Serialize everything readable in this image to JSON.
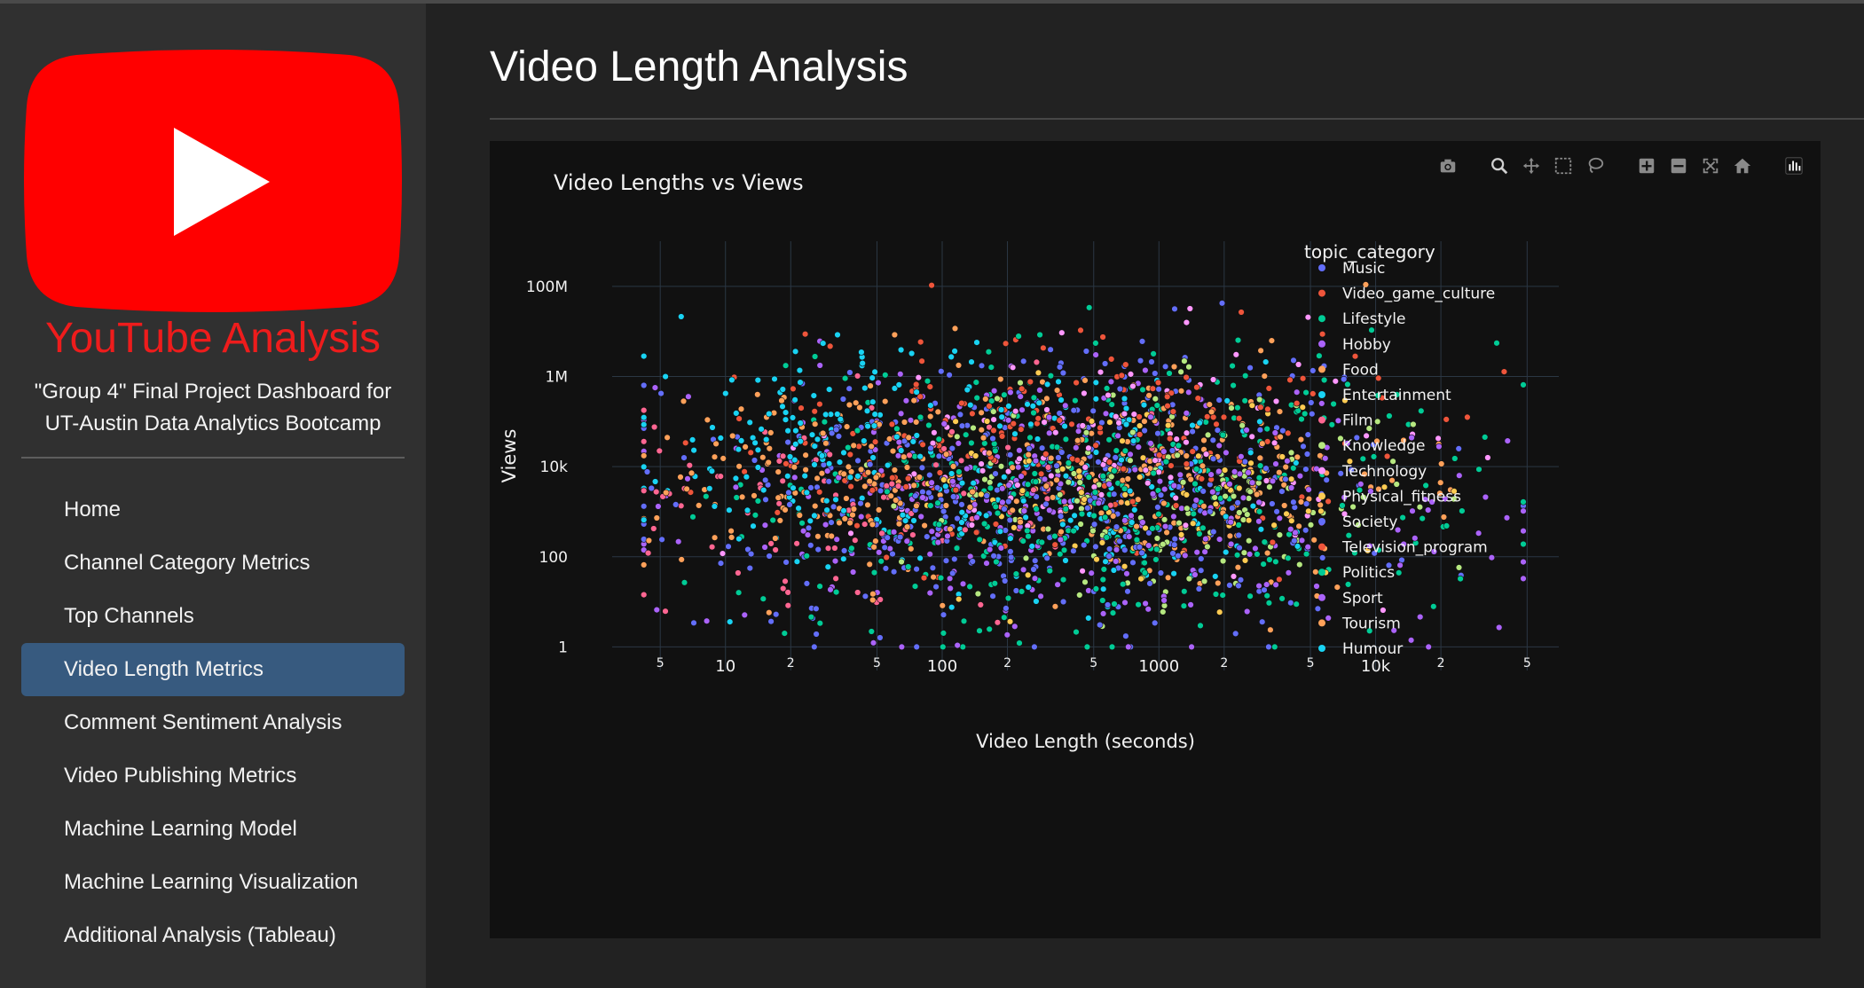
{
  "app": {
    "title": "YouTube Analysis",
    "subtitle_line1": "\"Group 4\" Final Project Dashboard for",
    "subtitle_line2": "UT-Austin Data Analytics Bootcamp",
    "brand_color": "#ff0000",
    "title_color": "#ee1c1c"
  },
  "nav": {
    "items": [
      {
        "label": "Home",
        "active": false
      },
      {
        "label": "Channel Category Metrics",
        "active": false
      },
      {
        "label": "Top Channels",
        "active": false
      },
      {
        "label": "Video Length Metrics",
        "active": true
      },
      {
        "label": "Comment Sentiment Analysis",
        "active": false
      },
      {
        "label": "Video Publishing Metrics",
        "active": false
      },
      {
        "label": "Machine Learning Model",
        "active": false
      },
      {
        "label": "Machine Learning Visualization",
        "active": false
      },
      {
        "label": "Additional Analysis (Tableau)",
        "active": false
      }
    ],
    "active_color": "#375a7f"
  },
  "page": {
    "title": "Video Length Analysis"
  },
  "modebar": {
    "icons": [
      "camera-icon",
      "zoom-icon",
      "pan-icon",
      "box-select-icon",
      "lasso-select-icon",
      "zoom-in-icon",
      "zoom-out-icon",
      "autoscale-icon",
      "reset-axes-icon",
      "plotly-logo-icon"
    ]
  },
  "chart_data": {
    "type": "scatter",
    "title": "Video Lengths vs Views",
    "xlabel": "Video Length (seconds)",
    "ylabel": "Views",
    "x_scale": "log",
    "y_scale": "log",
    "xlim": [
      3,
      70000
    ],
    "ylim": [
      0.3,
      1000000000.0
    ],
    "x_ticks": [
      {
        "value": 5,
        "label": "5",
        "minor": true
      },
      {
        "value": 10,
        "label": "10",
        "minor": false
      },
      {
        "value": 20,
        "label": "2",
        "minor": true
      },
      {
        "value": 50,
        "label": "5",
        "minor": true
      },
      {
        "value": 100,
        "label": "100",
        "minor": false
      },
      {
        "value": 200,
        "label": "2",
        "minor": true
      },
      {
        "value": 500,
        "label": "5",
        "minor": true
      },
      {
        "value": 1000,
        "label": "1000",
        "minor": false
      },
      {
        "value": 2000,
        "label": "2",
        "minor": true
      },
      {
        "value": 5000,
        "label": "5",
        "minor": true
      },
      {
        "value": 10000,
        "label": "10k",
        "minor": false
      },
      {
        "value": 20000,
        "label": "2",
        "minor": true
      },
      {
        "value": 50000,
        "label": "5",
        "minor": true
      }
    ],
    "y_ticks": [
      {
        "value": 1,
        "label": "1"
      },
      {
        "value": 100,
        "label": "100"
      },
      {
        "value": 10000,
        "label": "10k"
      },
      {
        "value": 1000000,
        "label": "1M"
      },
      {
        "value": 100000000,
        "label": "100M"
      }
    ],
    "grid": true,
    "legend_position": "right",
    "legend_title": "topic_category",
    "series": [
      {
        "name": "Music",
        "color": "#636efa",
        "center": [
          400,
          15000
        ],
        "spread": [
          1.4,
          2.6
        ],
        "count": 240
      },
      {
        "name": "Video_game_culture",
        "color": "#ef553b",
        "center": [
          300,
          30000
        ],
        "spread": [
          1.2,
          2.3
        ],
        "count": 110
      },
      {
        "name": "Lifestyle",
        "color": "#00cc96",
        "center": [
          600,
          8000
        ],
        "spread": [
          1.5,
          2.6
        ],
        "count": 230
      },
      {
        "name": "Hobby",
        "color": "#ab63fa",
        "center": [
          150,
          3000
        ],
        "spread": [
          1.3,
          2.5
        ],
        "count": 200
      },
      {
        "name": "Food",
        "color": "#ffa15a",
        "center": [
          900,
          5000
        ],
        "spread": [
          1.1,
          2.3
        ],
        "count": 230
      },
      {
        "name": "Entertainment",
        "color": "#19d3f3",
        "center": [
          300,
          5000
        ],
        "spread": [
          1.3,
          2.4
        ],
        "count": 190
      },
      {
        "name": "Film",
        "color": "#ff6692",
        "center": [
          60,
          3000
        ],
        "spread": [
          1.1,
          2.0
        ],
        "count": 110
      },
      {
        "name": "Knowledge",
        "color": "#b6e880",
        "center": [
          1000,
          2000
        ],
        "spread": [
          1.1,
          2.2
        ],
        "count": 150
      },
      {
        "name": "Technology",
        "color": "#ff97ff",
        "center": [
          600,
          20000
        ],
        "spread": [
          1.1,
          2.2
        ],
        "count": 110
      },
      {
        "name": "Physical_fitness",
        "color": "#fecb52",
        "center": [
          900,
          3000
        ],
        "spread": [
          1.0,
          2.0
        ],
        "count": 90
      },
      {
        "name": "Society",
        "color": "#636efa",
        "center": [
          200,
          500
        ],
        "spread": [
          1.5,
          2.3
        ],
        "count": 210
      },
      {
        "name": "Television_program",
        "color": "#ef553b",
        "center": [
          500,
          50000
        ],
        "spread": [
          1.2,
          2.2
        ],
        "count": 90
      },
      {
        "name": "Politics",
        "color": "#00cc96",
        "center": [
          400,
          300
        ],
        "spread": [
          1.4,
          2.3
        ],
        "count": 140
      },
      {
        "name": "Sport",
        "color": "#ab63fa",
        "center": [
          2000,
          1000
        ],
        "spread": [
          1.5,
          2.4
        ],
        "count": 140
      },
      {
        "name": "Tourism",
        "color": "#ffa15a",
        "center": [
          30,
          5000
        ],
        "spread": [
          0.8,
          2.1
        ],
        "count": 140
      },
      {
        "name": "Humour",
        "color": "#19d3f3",
        "center": [
          25,
          50000
        ],
        "spread": [
          0.7,
          2.0
        ],
        "count": 110
      }
    ]
  }
}
